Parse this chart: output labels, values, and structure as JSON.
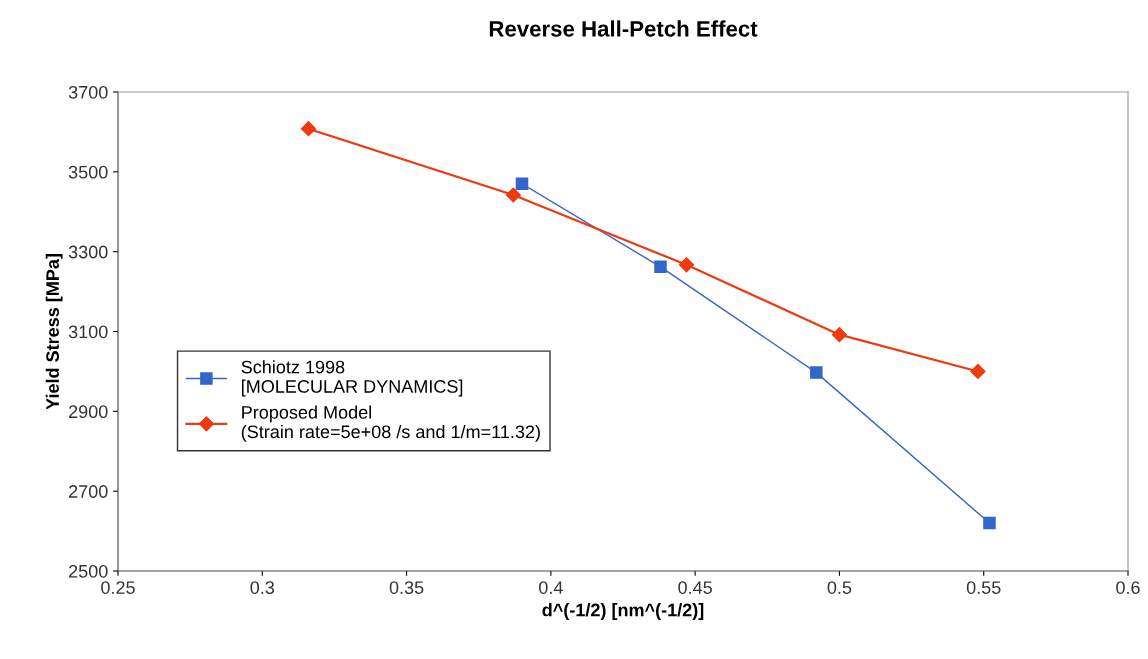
{
  "chart_data": {
    "type": "line",
    "title": "Reverse Hall-Petch Effect",
    "xlabel": "d^(-1/2) [nm^(-1/2)]",
    "ylabel": "Yield Stress [MPa]",
    "series": [
      {
        "name": "Schiotz 1998\n[MOLECULAR DYNAMICS]",
        "color": "#3366cc",
        "marker": "square",
        "x": [
          0.39,
          0.438,
          0.492,
          0.552
        ],
        "values": [
          3470,
          3262,
          2997,
          2620
        ]
      },
      {
        "name": "Proposed Model\n(Strain rate=5e+08 /s and 1/m=11.32)",
        "color": "#ee3a10",
        "marker": "diamond",
        "x": [
          0.316,
          0.387,
          0.447,
          0.5,
          0.548
        ],
        "values": [
          3608,
          3442,
          3267,
          3092,
          3000
        ]
      }
    ],
    "xlim": [
      0.25,
      0.6
    ],
    "xticks": [
      0.25,
      0.3,
      0.35,
      0.4,
      0.45,
      0.5,
      0.55,
      0.6
    ],
    "ylim": [
      2500,
      3700
    ],
    "yticks": [
      2500,
      2700,
      2900,
      3100,
      3300,
      3500,
      3700
    ],
    "grid": false,
    "legend": "left"
  }
}
